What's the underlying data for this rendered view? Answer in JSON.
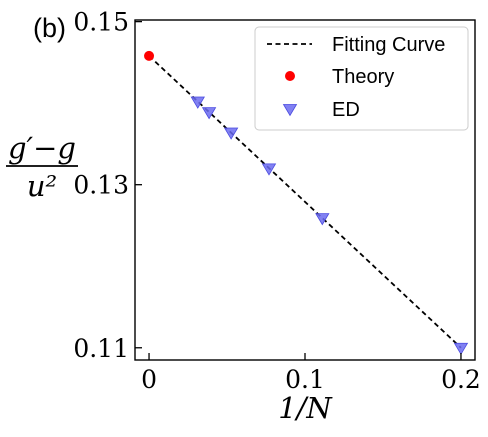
{
  "panel_label": "(b)",
  "chart_data": {
    "type": "scatter",
    "xlabel": "1/N",
    "ylabel": {
      "numerator": "g′−g",
      "denominator": "u²"
    },
    "xlim": [
      -0.009,
      0.209
    ],
    "ylim": [
      0.1085,
      0.1502
    ],
    "xticks": [
      0,
      0.1,
      0.2
    ],
    "xtick_labels": [
      "0",
      "0.1",
      "0.2"
    ],
    "yticks": [
      0.11,
      0.13,
      0.15
    ],
    "ytick_labels": [
      "0.11",
      "0.13",
      "0.15"
    ],
    "grid": false,
    "legend_position": "top-right",
    "series": [
      {
        "name": "Fitting Curve",
        "kind": "line",
        "style": "dashed",
        "color": "#000000",
        "x": [
          0,
          0.2
        ],
        "y": [
          0.1458,
          0.11
        ]
      },
      {
        "name": "Theory",
        "kind": "marker",
        "marker": "circle",
        "color": "#ff0000",
        "x": [
          0
        ],
        "y": [
          0.1458
        ]
      },
      {
        "name": "ED",
        "kind": "marker",
        "marker": "triangle-down",
        "color": "#6b6bf0",
        "x": [
          0.03125,
          0.0385,
          0.05263,
          0.07692,
          0.1111,
          0.2
        ],
        "y": [
          0.1402,
          0.1389,
          0.1364,
          0.132,
          0.1259,
          0.11
        ]
      }
    ]
  }
}
